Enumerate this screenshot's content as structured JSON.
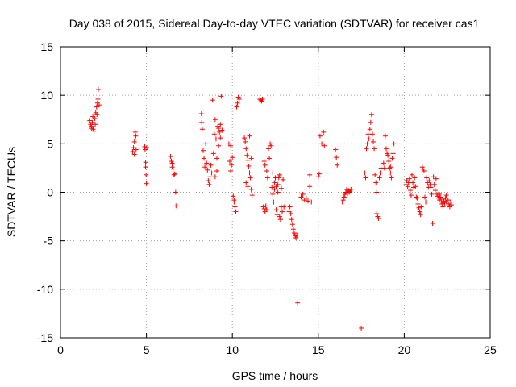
{
  "chart_data": {
    "type": "scatter",
    "title": "Day 038 of 2015, Sidereal Day-to-day VTEC variation (SDTVAR) for receiver cas1",
    "xlabel": "GPS time / hours",
    "ylabel": "SDTVAR / TECUs",
    "xlim": [
      0,
      25
    ],
    "ylim": [
      -15,
      15
    ],
    "xticks": [
      "0",
      "5",
      "10",
      "15",
      "20",
      "25"
    ],
    "yticks": [
      "-15",
      "-10",
      "-5",
      "0",
      "5",
      "10",
      "15"
    ],
    "grid": true,
    "marker": "+",
    "series_color": "#ff0000",
    "series": [
      {
        "name": "cas1",
        "points": [
          [
            1.7,
            7.4
          ],
          [
            1.75,
            7.0
          ],
          [
            1.8,
            6.8
          ],
          [
            1.85,
            7.2
          ],
          [
            1.9,
            6.5
          ],
          [
            1.95,
            6.3
          ],
          [
            2.0,
            7.6
          ],
          [
            2.05,
            8.2
          ],
          [
            2.1,
            8.8
          ],
          [
            2.15,
            9.2
          ],
          [
            2.2,
            10.6
          ],
          [
            2.25,
            9.0
          ],
          [
            1.82,
            6.6
          ],
          [
            1.88,
            7.8
          ],
          [
            2.02,
            7.0
          ],
          [
            2.12,
            8.0
          ],
          [
            2.18,
            9.6
          ],
          [
            4.2,
            4.2
          ],
          [
            4.25,
            4.6
          ],
          [
            4.3,
            5.2
          ],
          [
            4.35,
            6.2
          ],
          [
            4.38,
            5.8
          ],
          [
            4.3,
            3.9
          ],
          [
            4.4,
            4.4
          ],
          [
            4.9,
            4.7
          ],
          [
            4.92,
            4.4
          ],
          [
            4.95,
            3.1
          ],
          [
            4.95,
            2.6
          ],
          [
            4.98,
            1.8
          ],
          [
            5.0,
            0.9
          ],
          [
            5.02,
            4.6
          ],
          [
            6.4,
            3.7
          ],
          [
            6.45,
            3.2
          ],
          [
            6.5,
            2.6
          ],
          [
            6.55,
            2.4
          ],
          [
            6.6,
            1.8
          ],
          [
            6.65,
            1.9
          ],
          [
            6.7,
            0.0
          ],
          [
            6.72,
            -1.4
          ],
          [
            6.5,
            3.0
          ],
          [
            8.2,
            8.1
          ],
          [
            8.22,
            7.2
          ],
          [
            8.25,
            6.5
          ],
          [
            8.3,
            4.3
          ],
          [
            8.35,
            3.5
          ],
          [
            8.4,
            2.6
          ],
          [
            8.45,
            5.0
          ],
          [
            8.5,
            3.0
          ],
          [
            8.55,
            2.3
          ],
          [
            8.6,
            1.2
          ],
          [
            8.65,
            0.8
          ],
          [
            8.7,
            1.6
          ],
          [
            8.75,
            2.8
          ],
          [
            8.8,
            2.0
          ],
          [
            8.85,
            9.5
          ],
          [
            8.9,
            4.0
          ],
          [
            8.95,
            6.0
          ],
          [
            9.0,
            7.5
          ],
          [
            9.05,
            5.5
          ],
          [
            9.1,
            3.5
          ],
          [
            9.15,
            6.8
          ],
          [
            9.2,
            4.8
          ],
          [
            9.25,
            6.2
          ],
          [
            9.3,
            7.0
          ],
          [
            9.35,
            9.9
          ],
          [
            9.4,
            6.4
          ],
          [
            9.0,
            1.6
          ],
          [
            9.1,
            2.2
          ],
          [
            9.3,
            5.6
          ],
          [
            9.2,
            6.6
          ],
          [
            9.8,
            5.0
          ],
          [
            9.85,
            3.2
          ],
          [
            9.9,
            4.8
          ],
          [
            9.95,
            2.8
          ],
          [
            10.0,
            3.6
          ],
          [
            10.05,
            -0.4
          ],
          [
            10.1,
            -0.8
          ],
          [
            10.15,
            -1.5
          ],
          [
            10.2,
            -2.0
          ],
          [
            10.25,
            8.8
          ],
          [
            10.3,
            9.2
          ],
          [
            10.35,
            9.8
          ],
          [
            10.4,
            9.6
          ],
          [
            9.9,
            2.2
          ],
          [
            10.1,
            -1.0
          ],
          [
            10.7,
            5.6
          ],
          [
            10.75,
            5.2
          ],
          [
            10.8,
            4.5
          ],
          [
            10.85,
            3.8
          ],
          [
            10.9,
            3.3
          ],
          [
            10.95,
            2.7
          ],
          [
            11.0,
            2.0
          ],
          [
            11.05,
            1.5
          ],
          [
            11.1,
            0.3
          ],
          [
            11.15,
            -0.3
          ],
          [
            10.8,
            1.0
          ],
          [
            10.9,
            0.6
          ],
          [
            11.0,
            5.8
          ],
          [
            11.1,
            3.5
          ],
          [
            11.6,
            9.6
          ],
          [
            11.65,
            9.5
          ],
          [
            11.7,
            9.4
          ],
          [
            11.75,
            9.6
          ],
          [
            11.8,
            -1.5
          ],
          [
            11.85,
            -1.7
          ],
          [
            11.9,
            -2.0
          ],
          [
            11.95,
            -1.4
          ],
          [
            12.0,
            -1.8
          ],
          [
            11.85,
            3.2
          ],
          [
            11.9,
            2.8
          ],
          [
            12.0,
            2.2
          ],
          [
            12.05,
            1.5
          ],
          [
            12.1,
            4.5
          ],
          [
            12.15,
            3.5
          ],
          [
            12.2,
            5.0
          ],
          [
            12.25,
            4.8
          ],
          [
            12.3,
            0.5
          ],
          [
            12.35,
            -0.2
          ],
          [
            12.4,
            -1.0
          ],
          [
            12.45,
            0.3
          ],
          [
            12.5,
            1.5
          ],
          [
            12.55,
            -1.8
          ],
          [
            12.6,
            -2.3
          ],
          [
            12.65,
            0.0
          ],
          [
            12.7,
            1.5
          ],
          [
            12.75,
            -2.5
          ],
          [
            12.8,
            -2.8
          ],
          [
            12.85,
            -1.5
          ],
          [
            12.9,
            -2.0
          ],
          [
            12.95,
            1.3
          ],
          [
            13.0,
            -1.5
          ],
          [
            12.35,
            2.0
          ],
          [
            12.45,
            1.0
          ],
          [
            12.55,
            0.6
          ],
          [
            12.65,
            0.8
          ],
          [
            12.75,
            1.8
          ],
          [
            12.85,
            0.4
          ],
          [
            13.3,
            -2.0
          ],
          [
            13.35,
            -1.5
          ],
          [
            13.4,
            -2.2
          ],
          [
            13.45,
            -2.8
          ],
          [
            13.5,
            -3.3
          ],
          [
            13.55,
            -3.8
          ],
          [
            13.6,
            -4.2
          ],
          [
            13.65,
            -4.5
          ],
          [
            13.7,
            -4.7
          ],
          [
            13.75,
            -4.4
          ],
          [
            13.8,
            -11.4
          ],
          [
            14.0,
            -0.5
          ],
          [
            14.1,
            -0.2
          ],
          [
            14.2,
            -0.8
          ],
          [
            14.3,
            -0.6
          ],
          [
            14.4,
            -0.9
          ],
          [
            14.5,
            0.6
          ],
          [
            14.5,
            1.8
          ],
          [
            14.6,
            -1.0
          ],
          [
            15.0,
            1.6
          ],
          [
            15.05,
            1.9
          ],
          [
            15.1,
            5.8
          ],
          [
            15.2,
            5.0
          ],
          [
            15.3,
            6.2
          ],
          [
            15.35,
            4.8
          ],
          [
            16.0,
            4.4
          ],
          [
            16.05,
            3.6
          ],
          [
            16.1,
            2.8
          ],
          [
            16.4,
            -1.0
          ],
          [
            16.45,
            -0.8
          ],
          [
            16.5,
            -0.5
          ],
          [
            16.55,
            -0.2
          ],
          [
            16.6,
            0.0
          ],
          [
            16.65,
            0.3
          ],
          [
            16.7,
            -0.1
          ],
          [
            16.75,
            0.2
          ],
          [
            16.8,
            0.0
          ],
          [
            16.85,
            0.1
          ],
          [
            16.9,
            0.3
          ],
          [
            17.5,
            -14.0
          ],
          [
            17.7,
            2.0
          ],
          [
            17.75,
            1.5
          ],
          [
            17.8,
            4.5
          ],
          [
            17.85,
            5.0
          ],
          [
            17.9,
            6.0
          ],
          [
            17.95,
            5.5
          ],
          [
            18.0,
            6.5
          ],
          [
            18.05,
            7.2
          ],
          [
            18.1,
            8.0
          ],
          [
            18.15,
            6.0
          ],
          [
            18.2,
            5.2
          ],
          [
            18.25,
            4.5
          ],
          [
            18.3,
            1.8
          ],
          [
            18.35,
            1.0
          ],
          [
            18.4,
            0.0
          ],
          [
            18.45,
            -2.5
          ],
          [
            18.5,
            -2.7
          ],
          [
            18.55,
            1.5
          ],
          [
            18.6,
            2.0
          ],
          [
            18.65,
            2.5
          ],
          [
            18.4,
            -2.2
          ],
          [
            18.8,
            3.0
          ],
          [
            18.85,
            2.5
          ],
          [
            18.9,
            5.8
          ],
          [
            18.95,
            4.5
          ],
          [
            19.0,
            4.0
          ],
          [
            19.05,
            3.8
          ],
          [
            19.1,
            3.2
          ],
          [
            19.15,
            2.5
          ],
          [
            19.2,
            2.0
          ],
          [
            19.25,
            1.5
          ],
          [
            19.3,
            3.5
          ],
          [
            19.35,
            4.0
          ],
          [
            19.4,
            5.0
          ],
          [
            19.2,
            2.6
          ],
          [
            20.1,
            0.8
          ],
          [
            20.15,
            1.2
          ],
          [
            20.2,
            0.6
          ],
          [
            20.25,
            1.0
          ],
          [
            20.3,
            1.4
          ],
          [
            20.35,
            0.2
          ],
          [
            20.4,
            -0.3
          ],
          [
            20.45,
            1.8
          ],
          [
            20.5,
            1.0
          ],
          [
            20.55,
            0.5
          ],
          [
            20.6,
            1.5
          ],
          [
            20.65,
            0.6
          ],
          [
            20.7,
            -0.5
          ],
          [
            20.75,
            -0.6
          ],
          [
            20.8,
            -1.2
          ],
          [
            20.85,
            -1.6
          ],
          [
            20.9,
            -2.0
          ],
          [
            20.95,
            -2.3
          ],
          [
            21.0,
            -1.5
          ],
          [
            21.05,
            2.6
          ],
          [
            21.1,
            2.4
          ],
          [
            21.15,
            2.2
          ],
          [
            21.2,
            -0.5
          ],
          [
            21.25,
            -1.0
          ],
          [
            21.3,
            1.5
          ],
          [
            21.35,
            1.0
          ],
          [
            21.4,
            0.5
          ],
          [
            21.45,
            1.2
          ],
          [
            21.5,
            0.8
          ],
          [
            21.55,
            0.5
          ],
          [
            21.6,
            -0.2
          ],
          [
            21.65,
            -3.2
          ],
          [
            21.7,
            1.6
          ],
          [
            21.75,
            0.8
          ],
          [
            21.8,
            0.2
          ],
          [
            21.85,
            1.4
          ],
          [
            21.9,
            -0.2
          ],
          [
            21.95,
            -0.4
          ],
          [
            22.0,
            -0.6
          ],
          [
            22.05,
            -0.8
          ],
          [
            22.1,
            -0.5
          ],
          [
            22.15,
            -1.0
          ],
          [
            22.2,
            -1.2
          ],
          [
            22.25,
            -0.7
          ],
          [
            22.3,
            -0.9
          ],
          [
            22.35,
            -1.1
          ],
          [
            22.4,
            -0.6
          ],
          [
            22.45,
            -1.0
          ],
          [
            22.5,
            -1.4
          ],
          [
            22.55,
            -0.8
          ],
          [
            22.6,
            -1.2
          ],
          [
            22.65,
            -1.5
          ],
          [
            22.7,
            -1.0
          ],
          [
            22.75,
            -1.3
          ],
          [
            22.05,
            -0.2
          ],
          [
            22.25,
            -1.5
          ],
          [
            22.45,
            -0.3
          ]
        ]
      }
    ]
  }
}
